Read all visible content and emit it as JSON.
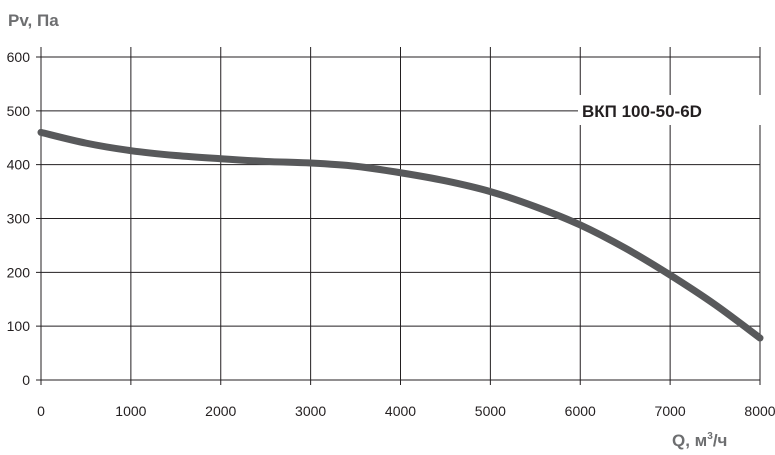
{
  "chart_data": {
    "type": "line",
    "ylabel": "Pv, Па",
    "xlabel_main": "Q, м",
    "xlabel_sup": "3",
    "xlabel_tail": "/ч",
    "xlim": [
      0,
      8000
    ],
    "ylim": [
      0,
      600
    ],
    "x_ticks": [
      0,
      1000,
      2000,
      3000,
      4000,
      5000,
      6000,
      7000,
      8000
    ],
    "y_ticks": [
      0,
      100,
      200,
      300,
      400,
      500,
      600
    ],
    "grid": true,
    "series": [
      {
        "name": "ВКП 100-50-6D",
        "x": [
          0,
          500,
          1000,
          1500,
          2000,
          2500,
          3000,
          3500,
          4000,
          4500,
          5000,
          5500,
          6000,
          6500,
          7000,
          7500,
          8000
        ],
        "y": [
          460,
          440,
          426,
          417,
          411,
          406,
          403,
          397,
          385,
          370,
          350,
          322,
          288,
          245,
          195,
          140,
          78
        ]
      }
    ],
    "colors": {
      "line": "#58595b",
      "grid": "#231f20",
      "axis_title": "#6d6e70",
      "text": "#231f20"
    }
  }
}
